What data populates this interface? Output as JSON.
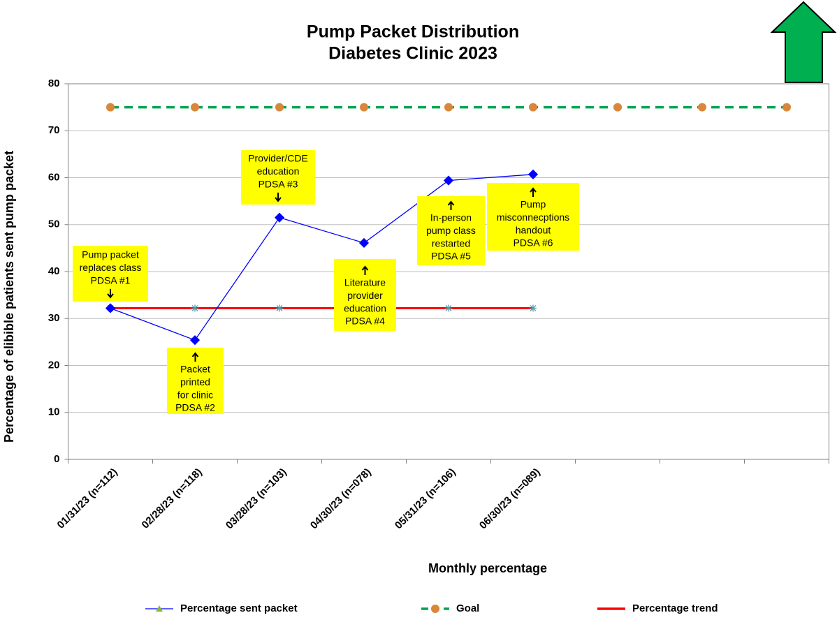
{
  "chart_data": {
    "type": "line",
    "title": "Pump Packet Distribution",
    "subtitle": "Diabetes Clinic 2023",
    "x_label": "Monthly percentage",
    "y_label": "Percentage of elibible patients sent pump packet",
    "categories": [
      "01/31/23 (n=112)",
      "02/28/23 (n=118)",
      "03/28/23 (n=103)",
      "04/30/23 (n=078)",
      "05/31/23 (n=106)",
      "06/30/23 (n=089)",
      null,
      null,
      null
    ],
    "ylim": [
      0,
      80
    ],
    "yticks": [
      0,
      10,
      20,
      30,
      40,
      50,
      60,
      70,
      80
    ],
    "grid": true,
    "series": [
      {
        "name": "Percentage sent packet",
        "color": "#0000ff",
        "values": [
          32.2,
          25.4,
          51.5,
          46.1,
          59.4,
          60.7,
          null,
          null,
          null
        ]
      },
      {
        "name": "Goal",
        "color": "#00a550",
        "marker_color": "#d9873a",
        "values": [
          75,
          75,
          75,
          75,
          75,
          75,
          75,
          75,
          75
        ]
      },
      {
        "name": "Percentage trend",
        "color": "#ff0000",
        "marker_color": "#5b9aa8",
        "values": [
          32.2,
          32.2,
          32.2,
          32.2,
          32.2,
          32.2,
          null,
          null,
          null
        ]
      }
    ],
    "annotations": [
      {
        "text": [
          "Pump packet",
          "replaces class",
          "PDSA #1"
        ]
      },
      {
        "text": [
          "Packet",
          "printed",
          "for clinic",
          "PDSA #2"
        ]
      },
      {
        "text": [
          "Provider/CDE",
          "education",
          "PDSA #3"
        ]
      },
      {
        "text": [
          "Literature",
          "provider",
          "education",
          "PDSA #4"
        ]
      },
      {
        "text": [
          "In-person",
          "pump class",
          "restarted",
          "PDSA #5"
        ]
      },
      {
        "text": [
          "Pump",
          "misconnecptions",
          "handout",
          "PDSA #6"
        ]
      }
    ]
  }
}
